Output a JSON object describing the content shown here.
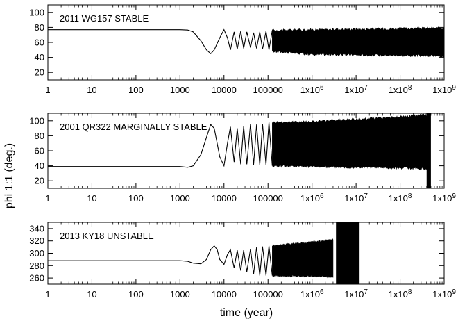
{
  "figure": {
    "ylabel": "phi 1:1 (deg.)",
    "xlabel": "time (year)"
  },
  "chart_data": [
    {
      "type": "line",
      "title": "2011 WG157  STABLE",
      "xscale": "log",
      "xlim": [
        1,
        1000000000
      ],
      "ylim": [
        10,
        110
      ],
      "xticks": [
        "1",
        "10",
        "100",
        "1000",
        "10000",
        "100000",
        "1x10^6",
        "1x10^7",
        "1x10^8",
        "1x10^9"
      ],
      "yticks": [
        "20",
        "40",
        "60",
        "80",
        "100"
      ],
      "series": [
        {
          "points": [
            [
              1,
              77
            ],
            [
              1000,
              77
            ],
            [
              1500,
              76.5
            ],
            [
              2000,
              74
            ],
            [
              3000,
              62
            ],
            [
              4000,
              50
            ],
            [
              5000,
              45
            ],
            [
              6000,
              50
            ],
            [
              8000,
              66
            ],
            [
              10000,
              77
            ],
            [
              12000,
              66
            ],
            [
              14000,
              50
            ],
            [
              17000,
              74
            ],
            [
              20000,
              51
            ],
            [
              24000,
              75
            ],
            [
              28000,
              52
            ],
            [
              33000,
              74
            ],
            [
              40000,
              53
            ],
            [
              47000,
              73
            ],
            [
              55000,
              52
            ],
            [
              65000,
              74
            ],
            [
              75000,
              51
            ],
            [
              90000,
              75
            ],
            [
              105000,
              50
            ],
            [
              125000,
              76
            ]
          ],
          "envelope": {
            "x_from": 125000,
            "x_to": 1000000000,
            "y_min": [
              [
                125000,
                48
              ],
              [
                1000000,
                44
              ],
              [
                1000000000,
                42
              ]
            ],
            "y_max": [
              [
                125000,
                76
              ],
              [
                1000000,
                77
              ],
              [
                1000000000,
                79
              ]
            ]
          }
        }
      ]
    },
    {
      "type": "line",
      "title": "2001 QR322  MARGINALLY STABLE",
      "xscale": "log",
      "xlim": [
        1,
        1000000000
      ],
      "ylim": [
        10,
        110
      ],
      "xticks": [
        "1",
        "10",
        "100",
        "1000",
        "10000",
        "100000",
        "1x10^6",
        "1x10^7",
        "1x10^8",
        "1x10^9"
      ],
      "yticks": [
        "20",
        "40",
        "60",
        "80",
        "100"
      ],
      "series": [
        {
          "points": [
            [
              1,
              39
            ],
            [
              1000,
              39
            ],
            [
              1500,
              38
            ],
            [
              2000,
              40
            ],
            [
              3000,
              55
            ],
            [
              4000,
              78
            ],
            [
              5000,
              95
            ],
            [
              6000,
              90
            ],
            [
              7000,
              70
            ],
            [
              8000,
              52
            ],
            [
              10000,
              40
            ],
            [
              12000,
              70
            ],
            [
              14000,
              92
            ],
            [
              17000,
              45
            ],
            [
              20000,
              90
            ],
            [
              24000,
              42
            ],
            [
              28000,
              93
            ],
            [
              33000,
              42
            ],
            [
              40000,
              96
            ],
            [
              47000,
              41
            ],
            [
              55000,
              95
            ],
            [
              65000,
              41
            ],
            [
              75000,
              96
            ],
            [
              90000,
              41
            ],
            [
              105000,
              98
            ],
            [
              125000,
              40
            ]
          ],
          "envelope": {
            "x_from": 125000,
            "x_to": 400000000,
            "y_min": [
              [
                125000,
                40
              ],
              [
                1000000,
                39
              ],
              [
                100000000,
                37
              ],
              [
                400000000,
                36
              ]
            ],
            "y_max": [
              [
                125000,
                98
              ],
              [
                1000000,
                99
              ],
              [
                100000000,
                105
              ],
              [
                400000000,
                108
              ]
            ]
          },
          "end_band": {
            "x_from": 400000000,
            "x_to": 500000000,
            "y_min": 5,
            "y_max": 110
          }
        }
      ]
    },
    {
      "type": "line",
      "title": "2013 KY18   UNSTABLE",
      "xscale": "log",
      "xlim": [
        1,
        1000000000
      ],
      "ylim": [
        250,
        350
      ],
      "xticks": [
        "1",
        "10",
        "100",
        "1000",
        "10000",
        "100000",
        "1x10^6",
        "1x10^7",
        "1x10^8",
        "1x10^9"
      ],
      "yticks": [
        "260",
        "280",
        "300",
        "320",
        "340"
      ],
      "series": [
        {
          "points": [
            [
              1,
              288
            ],
            [
              1000,
              288
            ],
            [
              1500,
              287
            ],
            [
              2000,
              284
            ],
            [
              3000,
              283
            ],
            [
              4000,
              290
            ],
            [
              5000,
              306
            ],
            [
              6000,
              312
            ],
            [
              7000,
              306
            ],
            [
              8000,
              290
            ],
            [
              10000,
              282
            ],
            [
              12000,
              298
            ],
            [
              14000,
              306
            ],
            [
              17000,
              276
            ],
            [
              20000,
              305
            ],
            [
              24000,
              272
            ],
            [
              28000,
              305
            ],
            [
              33000,
              270
            ],
            [
              40000,
              307
            ],
            [
              47000,
              266
            ],
            [
              55000,
              310
            ],
            [
              65000,
              264
            ],
            [
              75000,
              311
            ],
            [
              90000,
              264
            ],
            [
              105000,
              312
            ],
            [
              125000,
              264
            ]
          ],
          "envelope": {
            "x_from": 125000,
            "x_to": 3000000,
            "y_min": [
              [
                125000,
                264
              ],
              [
                1000000,
                263
              ],
              [
                3000000,
                262
              ]
            ],
            "y_max": [
              [
                125000,
                312
              ],
              [
                1000000,
                318
              ],
              [
                3000000,
                322
              ]
            ]
          },
          "end_band": {
            "x_from": 3500000,
            "x_to": 12000000,
            "y_min": 240,
            "y_max": 360
          }
        }
      ]
    }
  ]
}
